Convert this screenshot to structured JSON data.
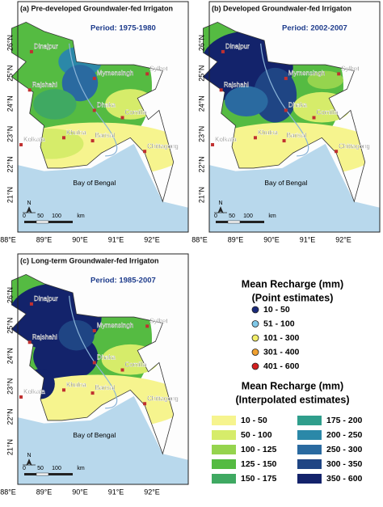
{
  "panels": [
    {
      "title": "(a) Pre-developed Groundwaler-fed Irrigaton",
      "period": "Period: 1975-1980"
    },
    {
      "title": "(b) Developed Groundwaler-fed Irrigaton",
      "period": "Period: 2002-2007"
    },
    {
      "title": "(c) Long-term Groundwaler-fed Irrigaton",
      "period": "Period: 1985-2007"
    }
  ],
  "lat_labels": [
    "26°N",
    "25°N",
    "24°N",
    "23°N",
    "22°N",
    "21°N"
  ],
  "lon_labels": [
    "88°E",
    "89°E",
    "90°E",
    "91°E",
    "92°E"
  ],
  "cities": [
    "Dinajpur",
    "Rajshahi",
    "Mymensingh",
    "Sylhet",
    "Dhaka",
    "Comilla",
    "Khulna",
    "Barisal",
    "Kolkata",
    "Chittagong"
  ],
  "sea_label": "Bay of Bengal",
  "scale_labels": [
    "0",
    "50",
    "100",
    "km"
  ],
  "north": "N",
  "legend": {
    "point_title": [
      "Mean Recharge (mm)",
      "(Point estimates)"
    ],
    "point_items": [
      {
        "label": "10 - 50",
        "color": "#1a2a7a"
      },
      {
        "label": "51 - 100",
        "color": "#7fc8e8"
      },
      {
        "label": "101 - 300",
        "color": "#f2ee6a"
      },
      {
        "label": "301 - 400",
        "color": "#f0a030"
      },
      {
        "label": "401 - 600",
        "color": "#d42020"
      }
    ],
    "interp_title": [
      "Mean Recharge (mm)",
      "(Interpolated estimates)"
    ],
    "interp_items": [
      {
        "label": "10 - 50",
        "color": "#f6f48e"
      },
      {
        "label": "50 - 100",
        "color": "#d6ec6a"
      },
      {
        "label": "100 - 125",
        "color": "#95d44e"
      },
      {
        "label": "125 - 150",
        "color": "#55bb42"
      },
      {
        "label": "150 - 175",
        "color": "#3fa962"
      },
      {
        "label": "175 - 200",
        "color": "#2f9e8c"
      },
      {
        "label": "200 - 250",
        "color": "#2b88a8"
      },
      {
        "label": "250 - 300",
        "color": "#2a6aa0"
      },
      {
        "label": "300 - 350",
        "color": "#1f4584"
      },
      {
        "label": "350 - 600",
        "color": "#13236b"
      }
    ]
  }
}
